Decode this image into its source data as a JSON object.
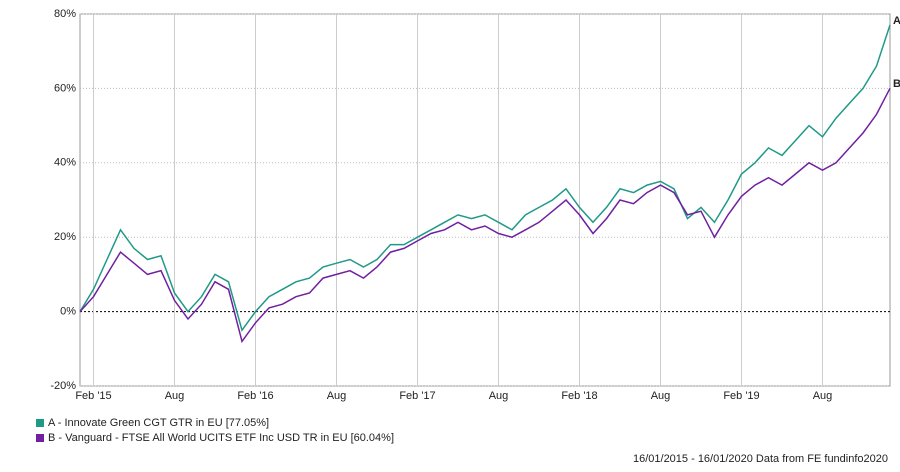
{
  "chart_data": {
    "type": "line",
    "x": [
      "2015-01",
      "2015-02",
      "2015-03",
      "2015-04",
      "2015-05",
      "2015-06",
      "2015-07",
      "2015-08",
      "2015-09",
      "2015-10",
      "2015-11",
      "2015-12",
      "2016-01",
      "2016-02",
      "2016-03",
      "2016-04",
      "2016-05",
      "2016-06",
      "2016-07",
      "2016-08",
      "2016-09",
      "2016-10",
      "2016-11",
      "2016-12",
      "2017-01",
      "2017-02",
      "2017-03",
      "2017-04",
      "2017-05",
      "2017-06",
      "2017-07",
      "2017-08",
      "2017-09",
      "2017-10",
      "2017-11",
      "2017-12",
      "2018-01",
      "2018-02",
      "2018-03",
      "2018-04",
      "2018-05",
      "2018-06",
      "2018-07",
      "2018-08",
      "2018-09",
      "2018-10",
      "2018-11",
      "2018-12",
      "2019-01",
      "2019-02",
      "2019-03",
      "2019-04",
      "2019-05",
      "2019-06",
      "2019-07",
      "2019-08",
      "2019-09",
      "2019-10",
      "2019-11",
      "2019-12",
      "2020-01"
    ],
    "series": [
      {
        "name": "A - Innovate Green CGT GTR in EU [77.05%]",
        "label": "A",
        "color": "#1f9a86",
        "values": [
          0,
          6,
          14,
          22,
          17,
          14,
          15,
          5,
          0,
          4,
          10,
          8,
          -5,
          0,
          4,
          6,
          8,
          9,
          12,
          13,
          14,
          12,
          14,
          18,
          18,
          20,
          22,
          24,
          26,
          25,
          26,
          24,
          22,
          26,
          28,
          30,
          33,
          28,
          24,
          28,
          33,
          32,
          34,
          35,
          33,
          25,
          28,
          24,
          30,
          37,
          40,
          44,
          42,
          46,
          50,
          47,
          52,
          56,
          60,
          66,
          77.05
        ]
      },
      {
        "name": "B - Vanguard - FTSE All World UCITS ETF Inc USD TR in EU [60.04%]",
        "label": "B",
        "color": "#7020a0",
        "values": [
          0,
          4,
          10,
          16,
          13,
          10,
          11,
          3,
          -2,
          2,
          8,
          6,
          -8,
          -3,
          1,
          2,
          4,
          5,
          9,
          10,
          11,
          9,
          12,
          16,
          17,
          19,
          21,
          22,
          24,
          22,
          23,
          21,
          20,
          22,
          24,
          27,
          30,
          26,
          21,
          25,
          30,
          29,
          32,
          34,
          32,
          26,
          27,
          20,
          26,
          31,
          34,
          36,
          34,
          37,
          40,
          38,
          40,
          44,
          48,
          53,
          60.04
        ]
      }
    ],
    "xlim": [
      "2015-01",
      "2020-01"
    ],
    "xticks": [
      {
        "value": "2015-02",
        "label": "Feb '15"
      },
      {
        "value": "2015-08",
        "label": "Aug"
      },
      {
        "value": "2016-02",
        "label": "Feb '16"
      },
      {
        "value": "2016-08",
        "label": "Aug"
      },
      {
        "value": "2017-02",
        "label": "Feb '17"
      },
      {
        "value": "2017-08",
        "label": "Aug"
      },
      {
        "value": "2018-02",
        "label": "Feb '18"
      },
      {
        "value": "2018-08",
        "label": "Aug"
      },
      {
        "value": "2019-02",
        "label": "Feb '19"
      },
      {
        "value": "2019-08",
        "label": "Aug"
      }
    ],
    "ylim": [
      -20,
      80
    ],
    "yticks": [
      {
        "value": -20,
        "label": "-20%"
      },
      {
        "value": 0,
        "label": "0%"
      },
      {
        "value": 20,
        "label": "20%"
      },
      {
        "value": 40,
        "label": "40%"
      },
      {
        "value": 60,
        "label": "60%"
      },
      {
        "value": 80,
        "label": "80%"
      }
    ],
    "grid": true,
    "footer": "16/01/2015 - 16/01/2020 Data from FE fundinfo2020"
  }
}
